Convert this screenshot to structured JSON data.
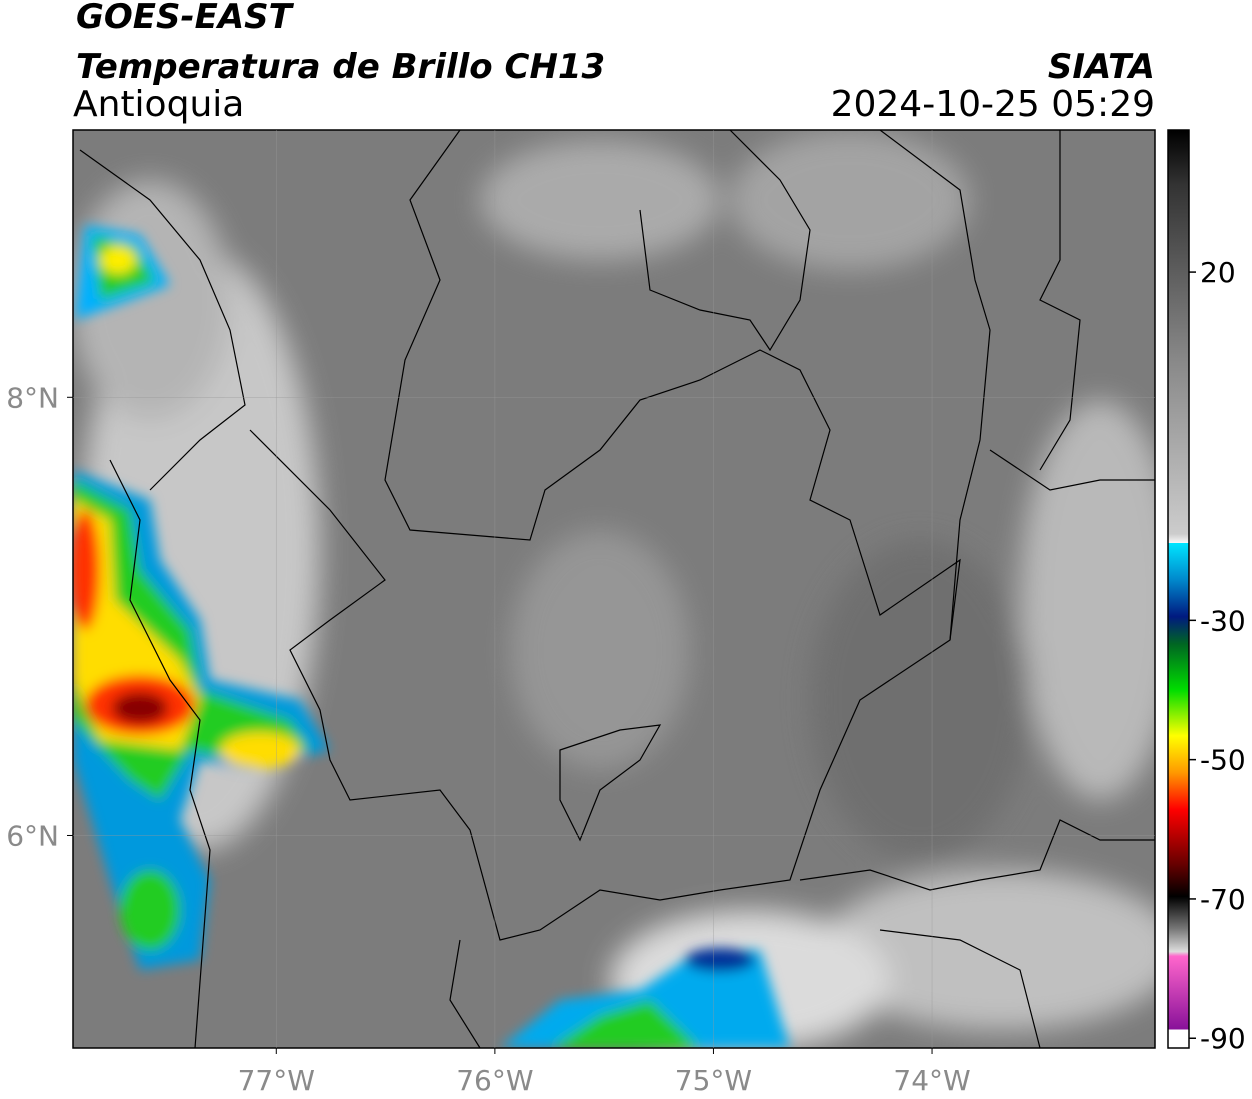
{
  "header": {
    "title": "GOES-EAST",
    "subtitle": "Temperatura de Brillo CH13",
    "region": "Antioquia",
    "source": "SIATA",
    "datetime": "2024-10-25 05:29"
  },
  "map": {
    "xlim": [
      -77.93,
      -72.98
    ],
    "ylim": [
      5.03,
      9.22
    ],
    "xticks": [
      {
        "value": -77,
        "label": "77°W"
      },
      {
        "value": -76,
        "label": "76°W"
      },
      {
        "value": -75,
        "label": "75°W"
      },
      {
        "value": -74,
        "label": "74°W"
      }
    ],
    "yticks": [
      {
        "value": 8,
        "label": "8°N"
      },
      {
        "value": 6,
        "label": "6°N"
      }
    ]
  },
  "colorbar": {
    "range": [
      -91.4,
      40.4
    ],
    "ticks": [
      20,
      -30,
      -50,
      -70,
      -90
    ]
  }
}
